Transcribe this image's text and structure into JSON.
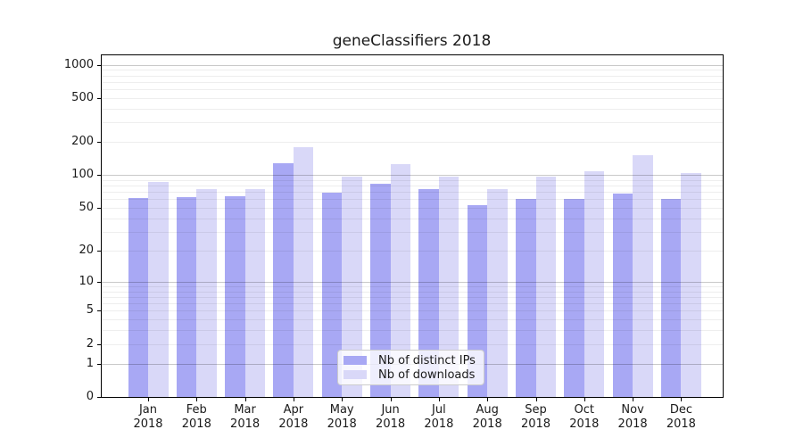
{
  "chart_data": {
    "type": "bar",
    "title": "geneClassifiers 2018",
    "categories": [
      "Jan 2018",
      "Feb 2018",
      "Mar 2018",
      "Apr 2018",
      "May 2018",
      "Jun 2018",
      "Jul 2018",
      "Aug 2018",
      "Sep 2018",
      "Oct 2018",
      "Nov 2018",
      "Dec 2018"
    ],
    "series": [
      {
        "name": "Nb of distinct IPs",
        "color": "#a8a8f4",
        "values": [
          62,
          63,
          64,
          128,
          69,
          83,
          74,
          53,
          61,
          60,
          68,
          61
        ]
      },
      {
        "name": "Nb of downloads",
        "color": "#d9d8f8",
        "values": [
          87,
          74,
          75,
          178,
          97,
          127,
          97,
          75,
          96,
          109,
          151,
          104
        ]
      }
    ],
    "xlabel": "",
    "ylabel": "",
    "y_axis": {
      "scale": "log1p",
      "ylim": [
        0,
        1240
      ],
      "tick_values": [
        0,
        1,
        2,
        5,
        10,
        20,
        50,
        100,
        200,
        500,
        1000
      ],
      "major_grid_values": [
        1,
        10,
        100,
        1000
      ],
      "minor_grid_values": [
        2,
        3,
        4,
        5,
        6,
        7,
        8,
        9,
        20,
        30,
        40,
        50,
        60,
        70,
        80,
        90,
        200,
        300,
        400,
        500,
        600,
        700,
        800,
        900
      ]
    },
    "legend": {
      "position": "lower-center"
    },
    "grid": true
  }
}
